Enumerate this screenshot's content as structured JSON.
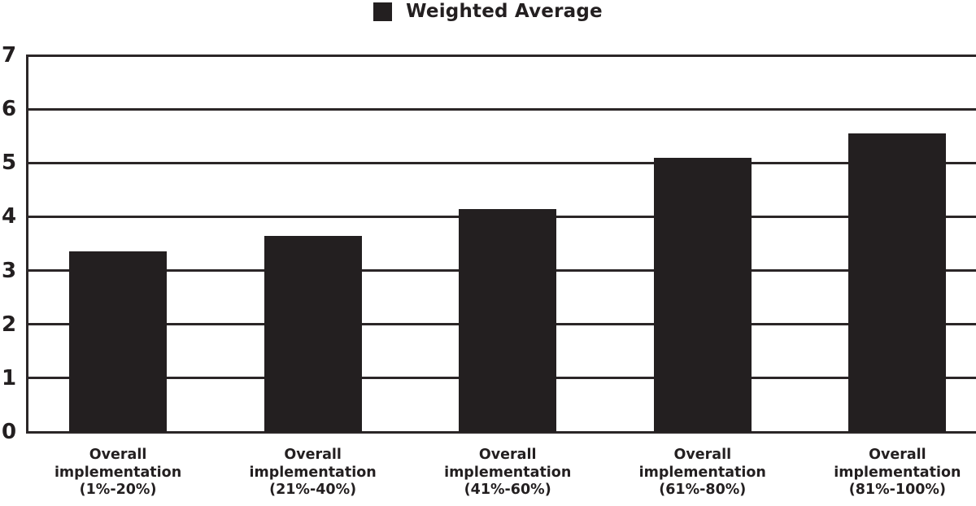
{
  "chart_data": {
    "type": "bar",
    "title": "",
    "legend_position": "top-center",
    "categories": [
      "Overall implementation (1%-20%)",
      "Overall implementation (21%-40%)",
      "Overall implementation (41%-60%)",
      "Overall implementation (61%-80%)",
      "Overall implementation (81%-100%)"
    ],
    "series": [
      {
        "name": "Weighted Average",
        "values": [
          3.35,
          3.65,
          4.15,
          5.1,
          5.55
        ]
      }
    ],
    "xlabel": "",
    "ylabel": "",
    "ylim": [
      0,
      7
    ],
    "yticks": [
      0,
      1,
      2,
      3,
      4,
      5,
      6,
      7
    ],
    "grid": true,
    "bar_color": "#231f20",
    "axis_color": "#2b2627",
    "text_color": "#231f20",
    "background_color": "#ffffff"
  }
}
